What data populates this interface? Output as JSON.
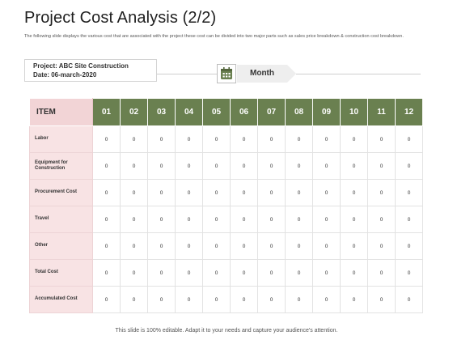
{
  "header": {
    "title": "Project Cost Analysis (2/2)",
    "subtitle": "The following slide displays the various cost that are associated with the project these cost can be divided into two major parts such as sales price breakdown & construction cost breakdown."
  },
  "project": {
    "name": "Project: ABC Site Construction",
    "date": "Date: 06-march-2020"
  },
  "month_tag": {
    "label": "Month",
    "icon": "calendar-icon"
  },
  "colors": {
    "header_green": "#6a8050",
    "item_pink": "#f8e3e4",
    "item_head_pink": "#f2d4d6"
  },
  "table": {
    "item_header": "ITEM",
    "months": [
      "01",
      "02",
      "03",
      "04",
      "05",
      "06",
      "07",
      "08",
      "09",
      "10",
      "11",
      "12"
    ],
    "rows": [
      {
        "label": "Labor",
        "values": [
          "0",
          "0",
          "0",
          "0",
          "0",
          "0",
          "0",
          "0",
          "0",
          "0",
          "0",
          "0"
        ]
      },
      {
        "label": "Equipment for Construction",
        "values": [
          "0",
          "0",
          "0",
          "0",
          "0",
          "0",
          "0",
          "0",
          "0",
          "0",
          "0",
          "0"
        ]
      },
      {
        "label": "Procurement Cost",
        "values": [
          "0",
          "0",
          "0",
          "0",
          "0",
          "0",
          "0",
          "0",
          "0",
          "0",
          "0",
          "0"
        ]
      },
      {
        "label": "Travel",
        "values": [
          "0",
          "0",
          "0",
          "0",
          "0",
          "0",
          "0",
          "0",
          "0",
          "0",
          "0",
          "0"
        ]
      },
      {
        "label": "Other",
        "values": [
          "0",
          "0",
          "0",
          "0",
          "0",
          "0",
          "0",
          "0",
          "0",
          "0",
          "0",
          "0"
        ]
      },
      {
        "label": "Total Cost",
        "values": [
          "0",
          "0",
          "0",
          "0",
          "0",
          "0",
          "0",
          "0",
          "0",
          "0",
          "0",
          "0"
        ]
      },
      {
        "label": "Accumulated Cost",
        "values": [
          "0",
          "0",
          "0",
          "0",
          "0",
          "0",
          "0",
          "0",
          "0",
          "0",
          "0",
          "0"
        ]
      }
    ]
  },
  "footer": {
    "text": "This slide is 100% editable. Adapt it to your needs and capture your audience's attention."
  }
}
